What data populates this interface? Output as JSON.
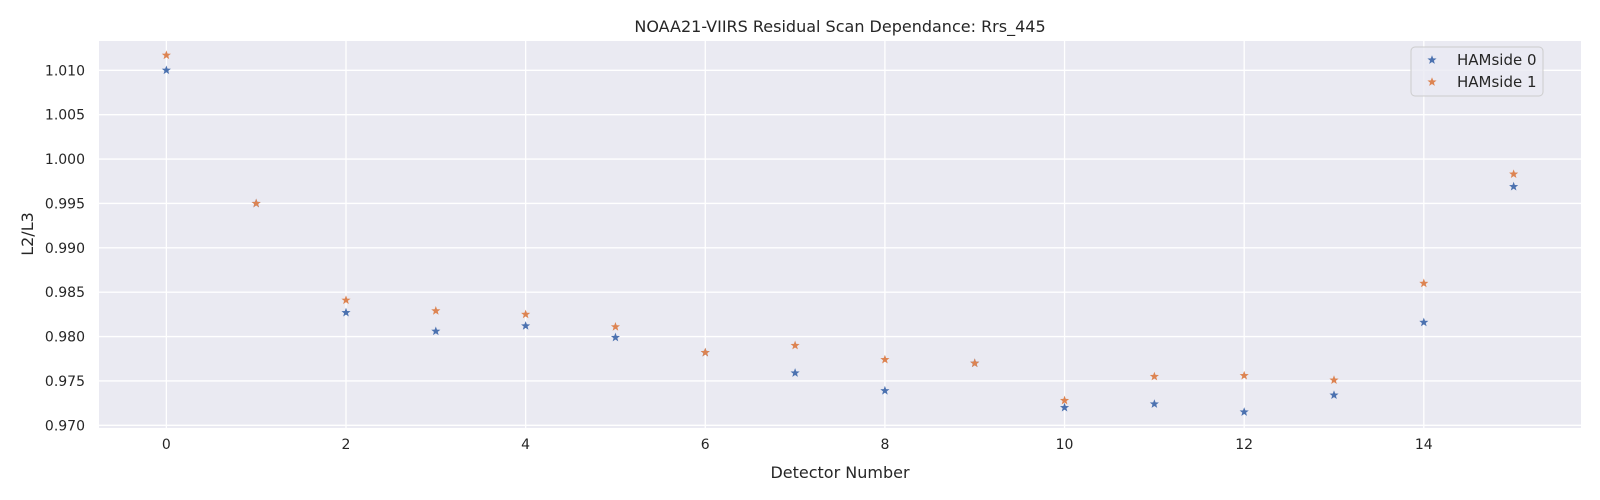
{
  "chart_data": {
    "type": "scatter",
    "title": "NOAA21-VIIRS Residual Scan Dependance: Rrs_445",
    "xlabel": "Detector Number",
    "ylabel": "L2/L3",
    "xlim": [
      -0.75,
      15.75
    ],
    "ylim": [
      0.9697,
      1.0133
    ],
    "xticks": [
      0,
      2,
      4,
      6,
      8,
      10,
      12,
      14
    ],
    "xtick_labels": [
      "0",
      "2",
      "4",
      "6",
      "8",
      "10",
      "12",
      "14"
    ],
    "yticks": [
      0.97,
      0.975,
      0.98,
      0.985,
      0.99,
      0.995,
      1.0,
      1.005,
      1.01
    ],
    "ytick_labels": [
      "0.970",
      "0.975",
      "0.980",
      "0.985",
      "0.990",
      "0.995",
      "1.000",
      "1.005",
      "1.010"
    ],
    "grid": true,
    "legend_position": "top-right",
    "marker": "star",
    "background_color": "#eaeaf2",
    "grid_color": "#ffffff",
    "series": [
      {
        "name": "HAMside 0",
        "color": "#4c72b0",
        "x": [
          0,
          1,
          2,
          3,
          4,
          5,
          6,
          7,
          8,
          9,
          10,
          11,
          12,
          13,
          14,
          15
        ],
        "y": [
          1.01,
          0.995,
          0.9827,
          0.9806,
          0.9812,
          0.9799,
          0.9782,
          0.9759,
          0.9739,
          0.977,
          0.972,
          0.9724,
          0.9715,
          0.9734,
          0.9816,
          0.9969
        ]
      },
      {
        "name": "HAMside 1",
        "color": "#dd8452",
        "x": [
          0,
          1,
          2,
          3,
          4,
          5,
          6,
          7,
          8,
          9,
          10,
          11,
          12,
          13,
          14,
          15
        ],
        "y": [
          1.0117,
          0.995,
          0.9841,
          0.9829,
          0.9825,
          0.9811,
          0.9782,
          0.979,
          0.9774,
          0.977,
          0.9728,
          0.9755,
          0.9756,
          0.9751,
          0.986,
          0.9983
        ]
      }
    ]
  }
}
